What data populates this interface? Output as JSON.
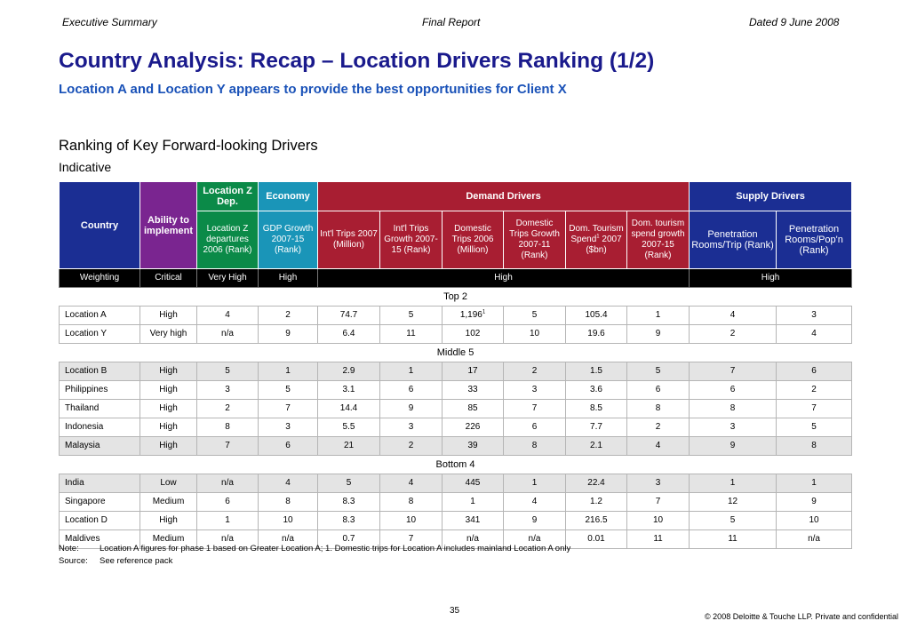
{
  "header": {
    "left": "Executive Summary",
    "center": "Final Report",
    "right": "Dated 9 June 2008"
  },
  "title": "Country Analysis: Recap – Location Drivers Ranking (1/2)",
  "subtitle": "Location A and Location Y appears to provide the best opportunities for Client X",
  "section": {
    "title": "Ranking of Key Forward-looking Drivers",
    "subtitle": "Indicative"
  },
  "table": {
    "groups": {
      "country": "Country",
      "ability": "Ability to implement",
      "location_z": "Location Z Dep.",
      "economy": "Economy",
      "demand": "Demand Drivers",
      "supply": "Supply Drivers"
    },
    "columns": [
      "Location Z departures 2006 (Rank)",
      "GDP Growth 2007-15 (Rank)",
      "Int'l Trips 2007 (Million)",
      "Int'l Trips Growth 2007-15 (Rank)",
      "Domestic Trips 2006 (Million)",
      "Domestic Trips Growth 2007-11 (Rank)",
      "Dom. Tourism Spend",
      "2007 ($bn)",
      "Dom. tourism spend growth 2007-15 (Rank)",
      "Penetration Rooms/Trip (Rank)",
      "Penetration Rooms/Pop'n (Rank)"
    ],
    "superscript": "1",
    "weighting": {
      "label": "Weighting",
      "ability": "Critical",
      "location_z": "Very High",
      "economy": "High",
      "demand": "High",
      "supply": "High"
    },
    "group_labels": {
      "top": "Top 2",
      "middle": "Middle 5",
      "bottom": "Bottom 4"
    },
    "top": [
      {
        "name": "Location A",
        "cells": [
          "High",
          "4",
          "2",
          "74.7",
          "5",
          "1,196",
          "5",
          "105.4",
          "1",
          "4",
          "3"
        ]
      },
      {
        "name": "Location Y",
        "cells": [
          "Very high",
          "n/a",
          "9",
          "6.4",
          "11",
          "102",
          "10",
          "19.6",
          "9",
          "2",
          "4"
        ]
      }
    ],
    "middle": [
      {
        "name": "Location B",
        "cells": [
          "High",
          "5",
          "1",
          "2.9",
          "1",
          "17",
          "2",
          "1.5",
          "5",
          "7",
          "6"
        ]
      },
      {
        "name": "Philippines",
        "cells": [
          "High",
          "3",
          "5",
          "3.1",
          "6",
          "33",
          "3",
          "3.6",
          "6",
          "6",
          "2"
        ]
      },
      {
        "name": "Thailand",
        "cells": [
          "High",
          "2",
          "7",
          "14.4",
          "9",
          "85",
          "7",
          "8.5",
          "8",
          "8",
          "7"
        ]
      },
      {
        "name": "Indonesia",
        "cells": [
          "High",
          "8",
          "3",
          "5.5",
          "3",
          "226",
          "6",
          "7.7",
          "2",
          "3",
          "5"
        ]
      },
      {
        "name": "Malaysia",
        "cells": [
          "High",
          "7",
          "6",
          "21",
          "2",
          "39",
          "8",
          "2.1",
          "4",
          "9",
          "8"
        ]
      }
    ],
    "bottom": [
      {
        "name": "India",
        "cells": [
          "Low",
          "n/a",
          "4",
          "5",
          "4",
          "445",
          "1",
          "22.4",
          "3",
          "1",
          "1"
        ]
      },
      {
        "name": "Singapore",
        "cells": [
          "Medium",
          "6",
          "8",
          "8.3",
          "8",
          "1",
          "4",
          "1.2",
          "7",
          "12",
          "9"
        ]
      },
      {
        "name": "Location D",
        "cells": [
          "High",
          "1",
          "10",
          "8.3",
          "10",
          "341",
          "9",
          "216.5",
          "10",
          "5",
          "10"
        ]
      },
      {
        "name": "Maldives",
        "cells": [
          "Medium",
          "n/a",
          "n/a",
          "0.7",
          "7",
          "n/a",
          "n/a",
          "0.01",
          "11",
          "11",
          "n/a"
        ]
      }
    ]
  },
  "note": {
    "note_label": "Note:",
    "note_text": "Location A figures for phase 1 based on Greater Location A; 1. Domestic trips for Location A includes mainland Location A only",
    "source_label": "Source:",
    "source_text": "See reference pack"
  },
  "page_number": "35",
  "copyright": "© 2008 Deloitte & Touche LLP. Private and confidential",
  "colors": {
    "title": "#1a1a8c",
    "subtitle": "#1a52b8",
    "navy": "#1b2e93",
    "purple": "#7a2590",
    "green": "#0b8a48",
    "teal": "#1a95b8",
    "red": "#a81e32",
    "shade": "#e4e4e4"
  }
}
